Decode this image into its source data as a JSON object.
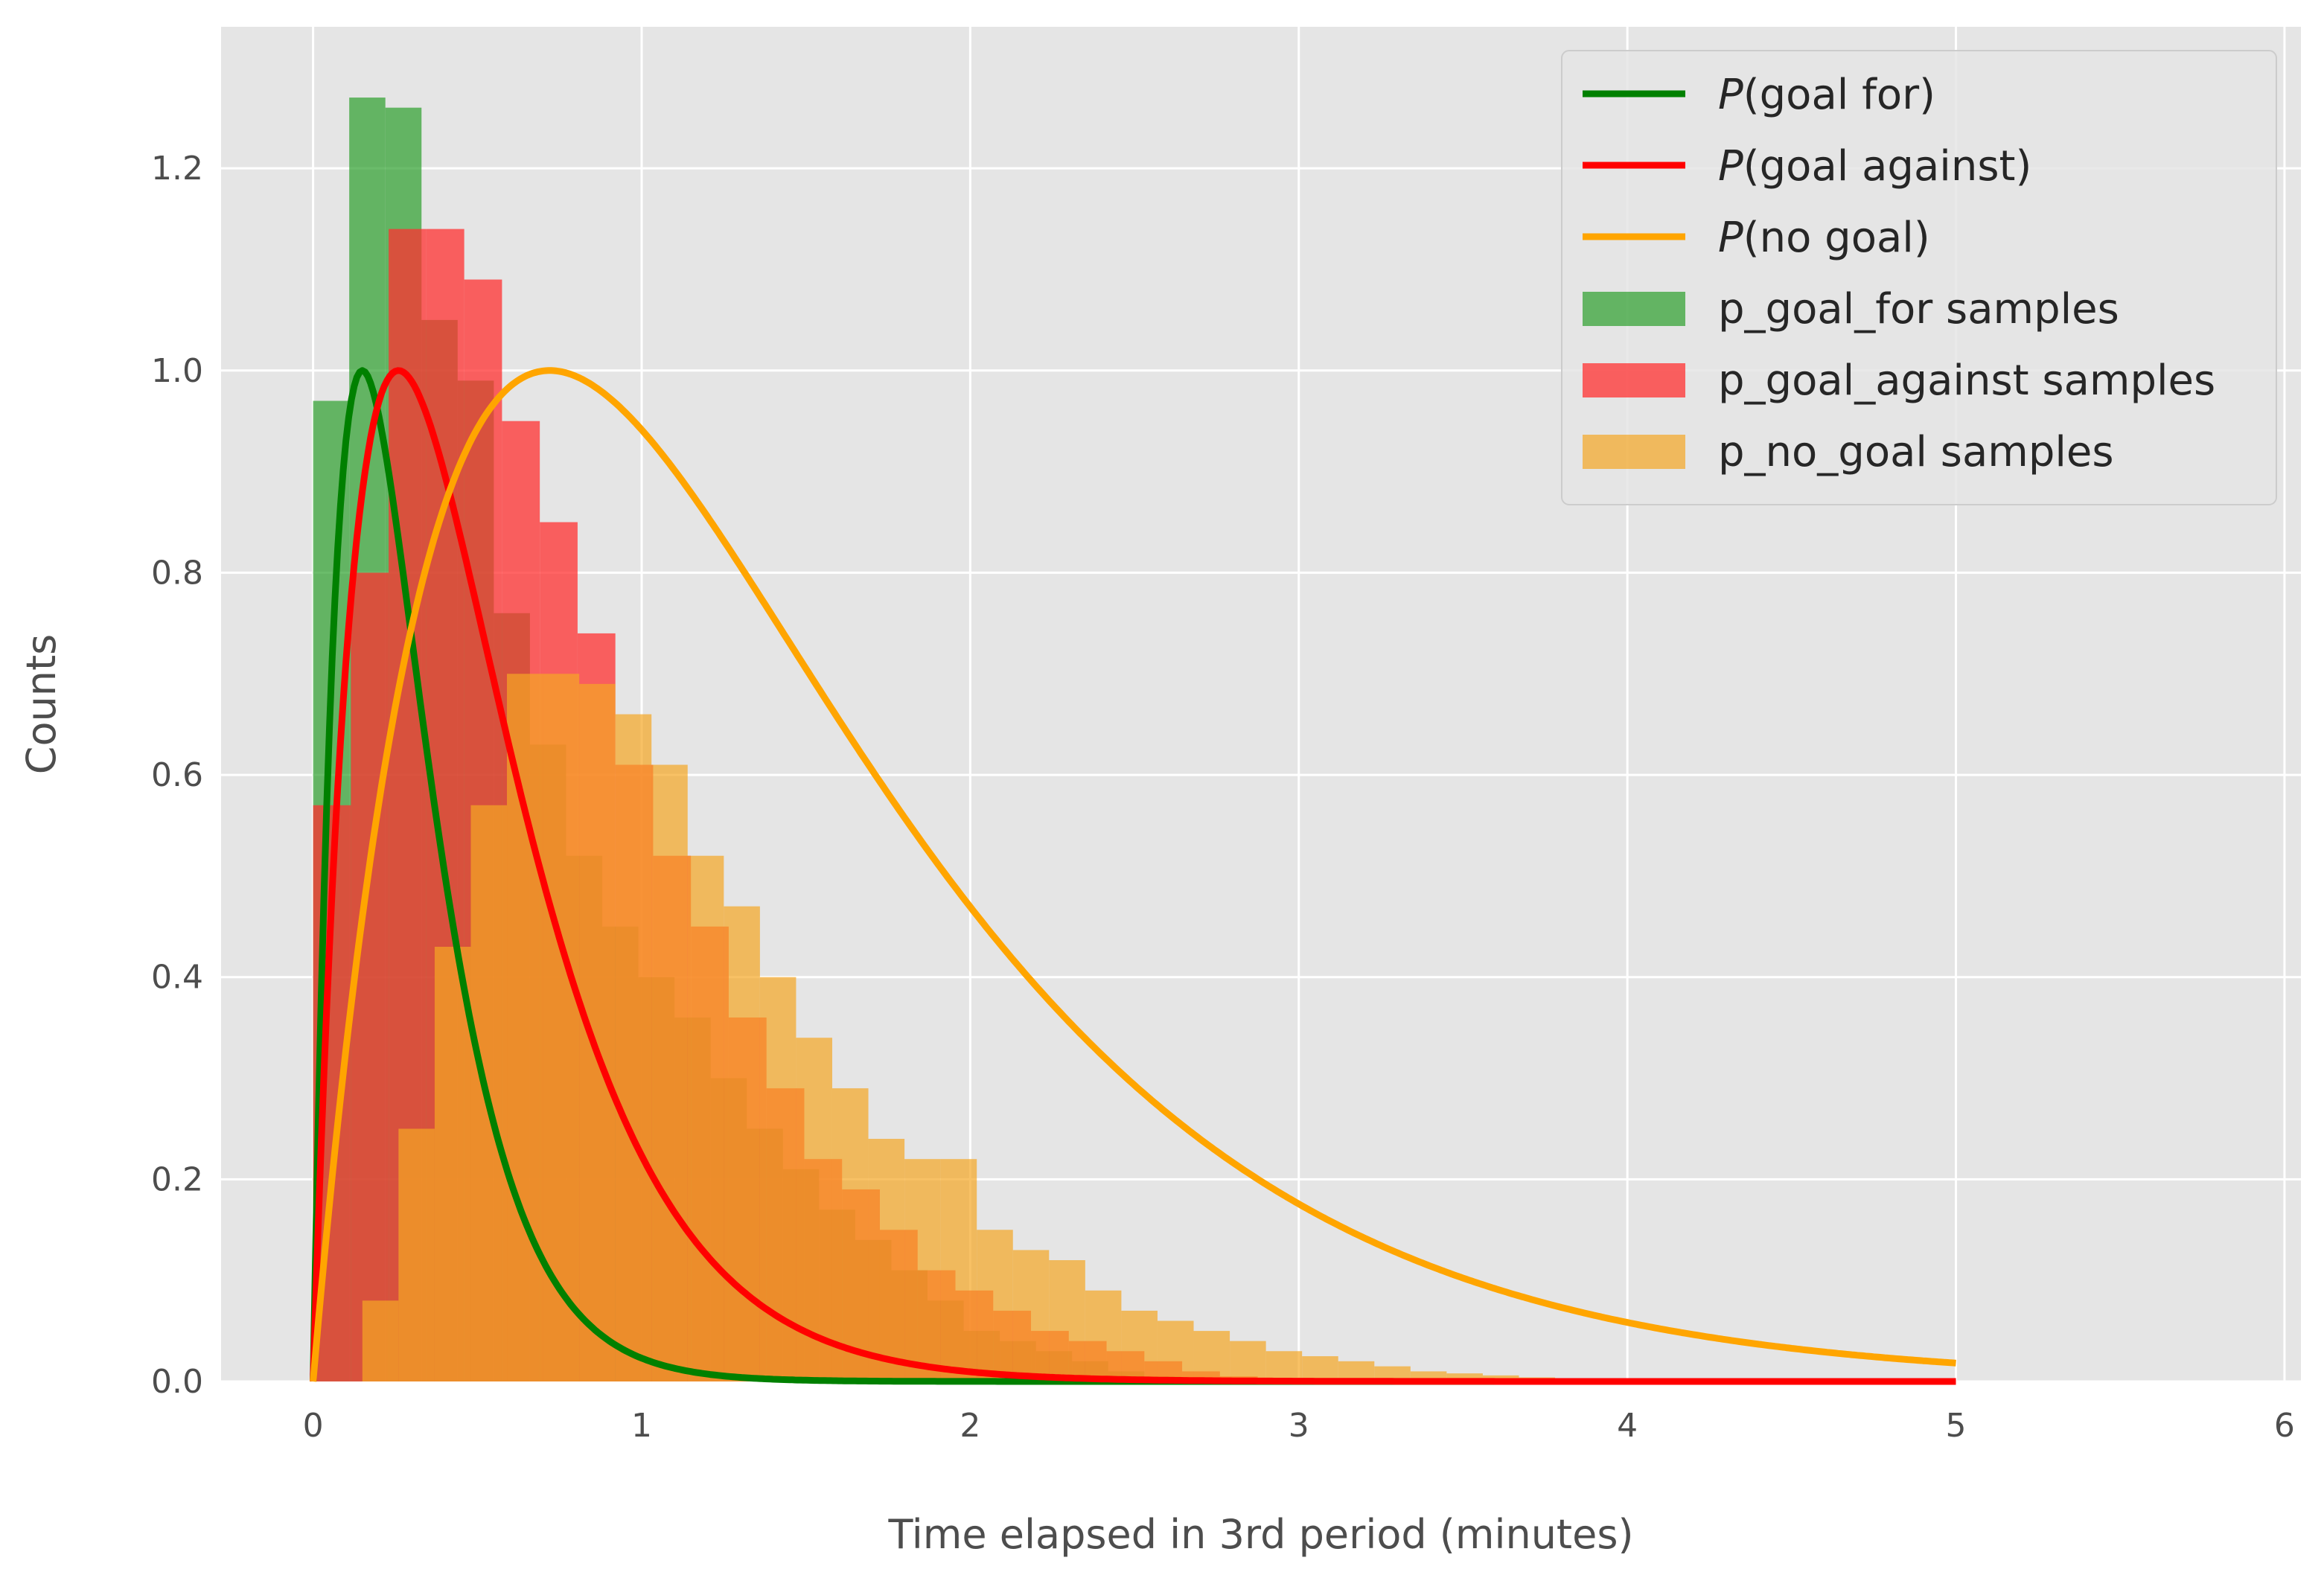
{
  "chart_data": {
    "type": "histogram+line",
    "title": "",
    "xlabel": "Time elapsed in 3rd period (minutes)",
    "ylabel": "Counts",
    "xlim": [
      -0.28,
      6.05
    ],
    "ylim": [
      0,
      1.34
    ],
    "x_ticks": [
      0,
      1,
      2,
      3,
      4,
      5,
      6
    ],
    "y_ticks": [
      0.0,
      0.2,
      0.4,
      0.6,
      0.8,
      1.0,
      1.2
    ],
    "grid": true,
    "legend_position": "top-right",
    "curves": [
      {
        "name_prefix": "P",
        "name": "(goal for)",
        "color": "#008000",
        "shape": "k^2 x e^(-x/theta), normalized peak 1",
        "peak_x": 0.15,
        "x_end": 5.0
      },
      {
        "name_prefix": "P",
        "name": "(goal against)",
        "color": "#ff0000",
        "shape": "k^2 x e^(-x/theta), normalized peak 1",
        "peak_x": 0.26,
        "x_end": 5.0
      },
      {
        "name_prefix": "P",
        "name": "(no goal)",
        "color": "#ffa500",
        "shape": "k^2 x e^(-x/theta), normalized peak 1",
        "peak_x": 0.72,
        "x_end": 5.0
      }
    ],
    "histograms": [
      {
        "name": "p_goal_for samples",
        "color": "#2ca02c",
        "opacity": 0.7,
        "bin_edges": [
          0.0,
          0.11,
          0.22,
          0.33,
          0.44,
          0.55,
          0.66,
          0.77,
          0.88,
          0.99,
          1.1,
          1.21,
          1.32,
          1.43,
          1.54,
          1.65,
          1.76,
          1.87,
          1.98,
          2.09,
          2.2,
          2.31,
          2.42,
          2.53,
          2.64
        ],
        "values": [
          0.97,
          1.27,
          1.26,
          1.05,
          0.99,
          0.76,
          0.63,
          0.52,
          0.45,
          0.4,
          0.36,
          0.3,
          0.25,
          0.21,
          0.17,
          0.14,
          0.11,
          0.08,
          0.05,
          0.04,
          0.03,
          0.02,
          0.01,
          0.005
        ]
      },
      {
        "name": "p_goal_against samples",
        "color": "#ff3030",
        "opacity": 0.75,
        "bin_edges": [
          0.0,
          0.115,
          0.23,
          0.345,
          0.46,
          0.575,
          0.69,
          0.805,
          0.92,
          1.035,
          1.15,
          1.265,
          1.38,
          1.495,
          1.61,
          1.725,
          1.84,
          1.955,
          2.07,
          2.185,
          2.3,
          2.415,
          2.53,
          2.645,
          2.76,
          2.875
        ],
        "values": [
          0.57,
          0.8,
          1.14,
          1.14,
          1.09,
          0.95,
          0.85,
          0.74,
          0.61,
          0.52,
          0.45,
          0.36,
          0.29,
          0.22,
          0.19,
          0.15,
          0.11,
          0.09,
          0.07,
          0.05,
          0.04,
          0.03,
          0.02,
          0.01,
          0.005
        ]
      },
      {
        "name": "p_no_goal samples",
        "color": "#f5a623",
        "opacity": 0.7,
        "bin_edges": [
          0.15,
          0.26,
          0.37,
          0.48,
          0.59,
          0.7,
          0.81,
          0.92,
          1.03,
          1.14,
          1.25,
          1.36,
          1.47,
          1.58,
          1.69,
          1.8,
          1.91,
          2.02,
          2.13,
          2.24,
          2.35,
          2.46,
          2.57,
          2.68,
          2.79,
          2.9,
          3.01,
          3.12,
          3.23,
          3.34,
          3.45,
          3.56,
          3.67,
          3.78,
          3.89,
          4.0
        ],
        "values": [
          0.08,
          0.25,
          0.43,
          0.57,
          0.7,
          0.7,
          0.69,
          0.66,
          0.61,
          0.52,
          0.47,
          0.4,
          0.34,
          0.29,
          0.24,
          0.22,
          0.22,
          0.15,
          0.13,
          0.12,
          0.09,
          0.07,
          0.06,
          0.05,
          0.04,
          0.03,
          0.025,
          0.02,
          0.015,
          0.01,
          0.008,
          0.006,
          0.004,
          0.003,
          0.002
        ]
      }
    ],
    "overlap_color": "#e67e10"
  }
}
